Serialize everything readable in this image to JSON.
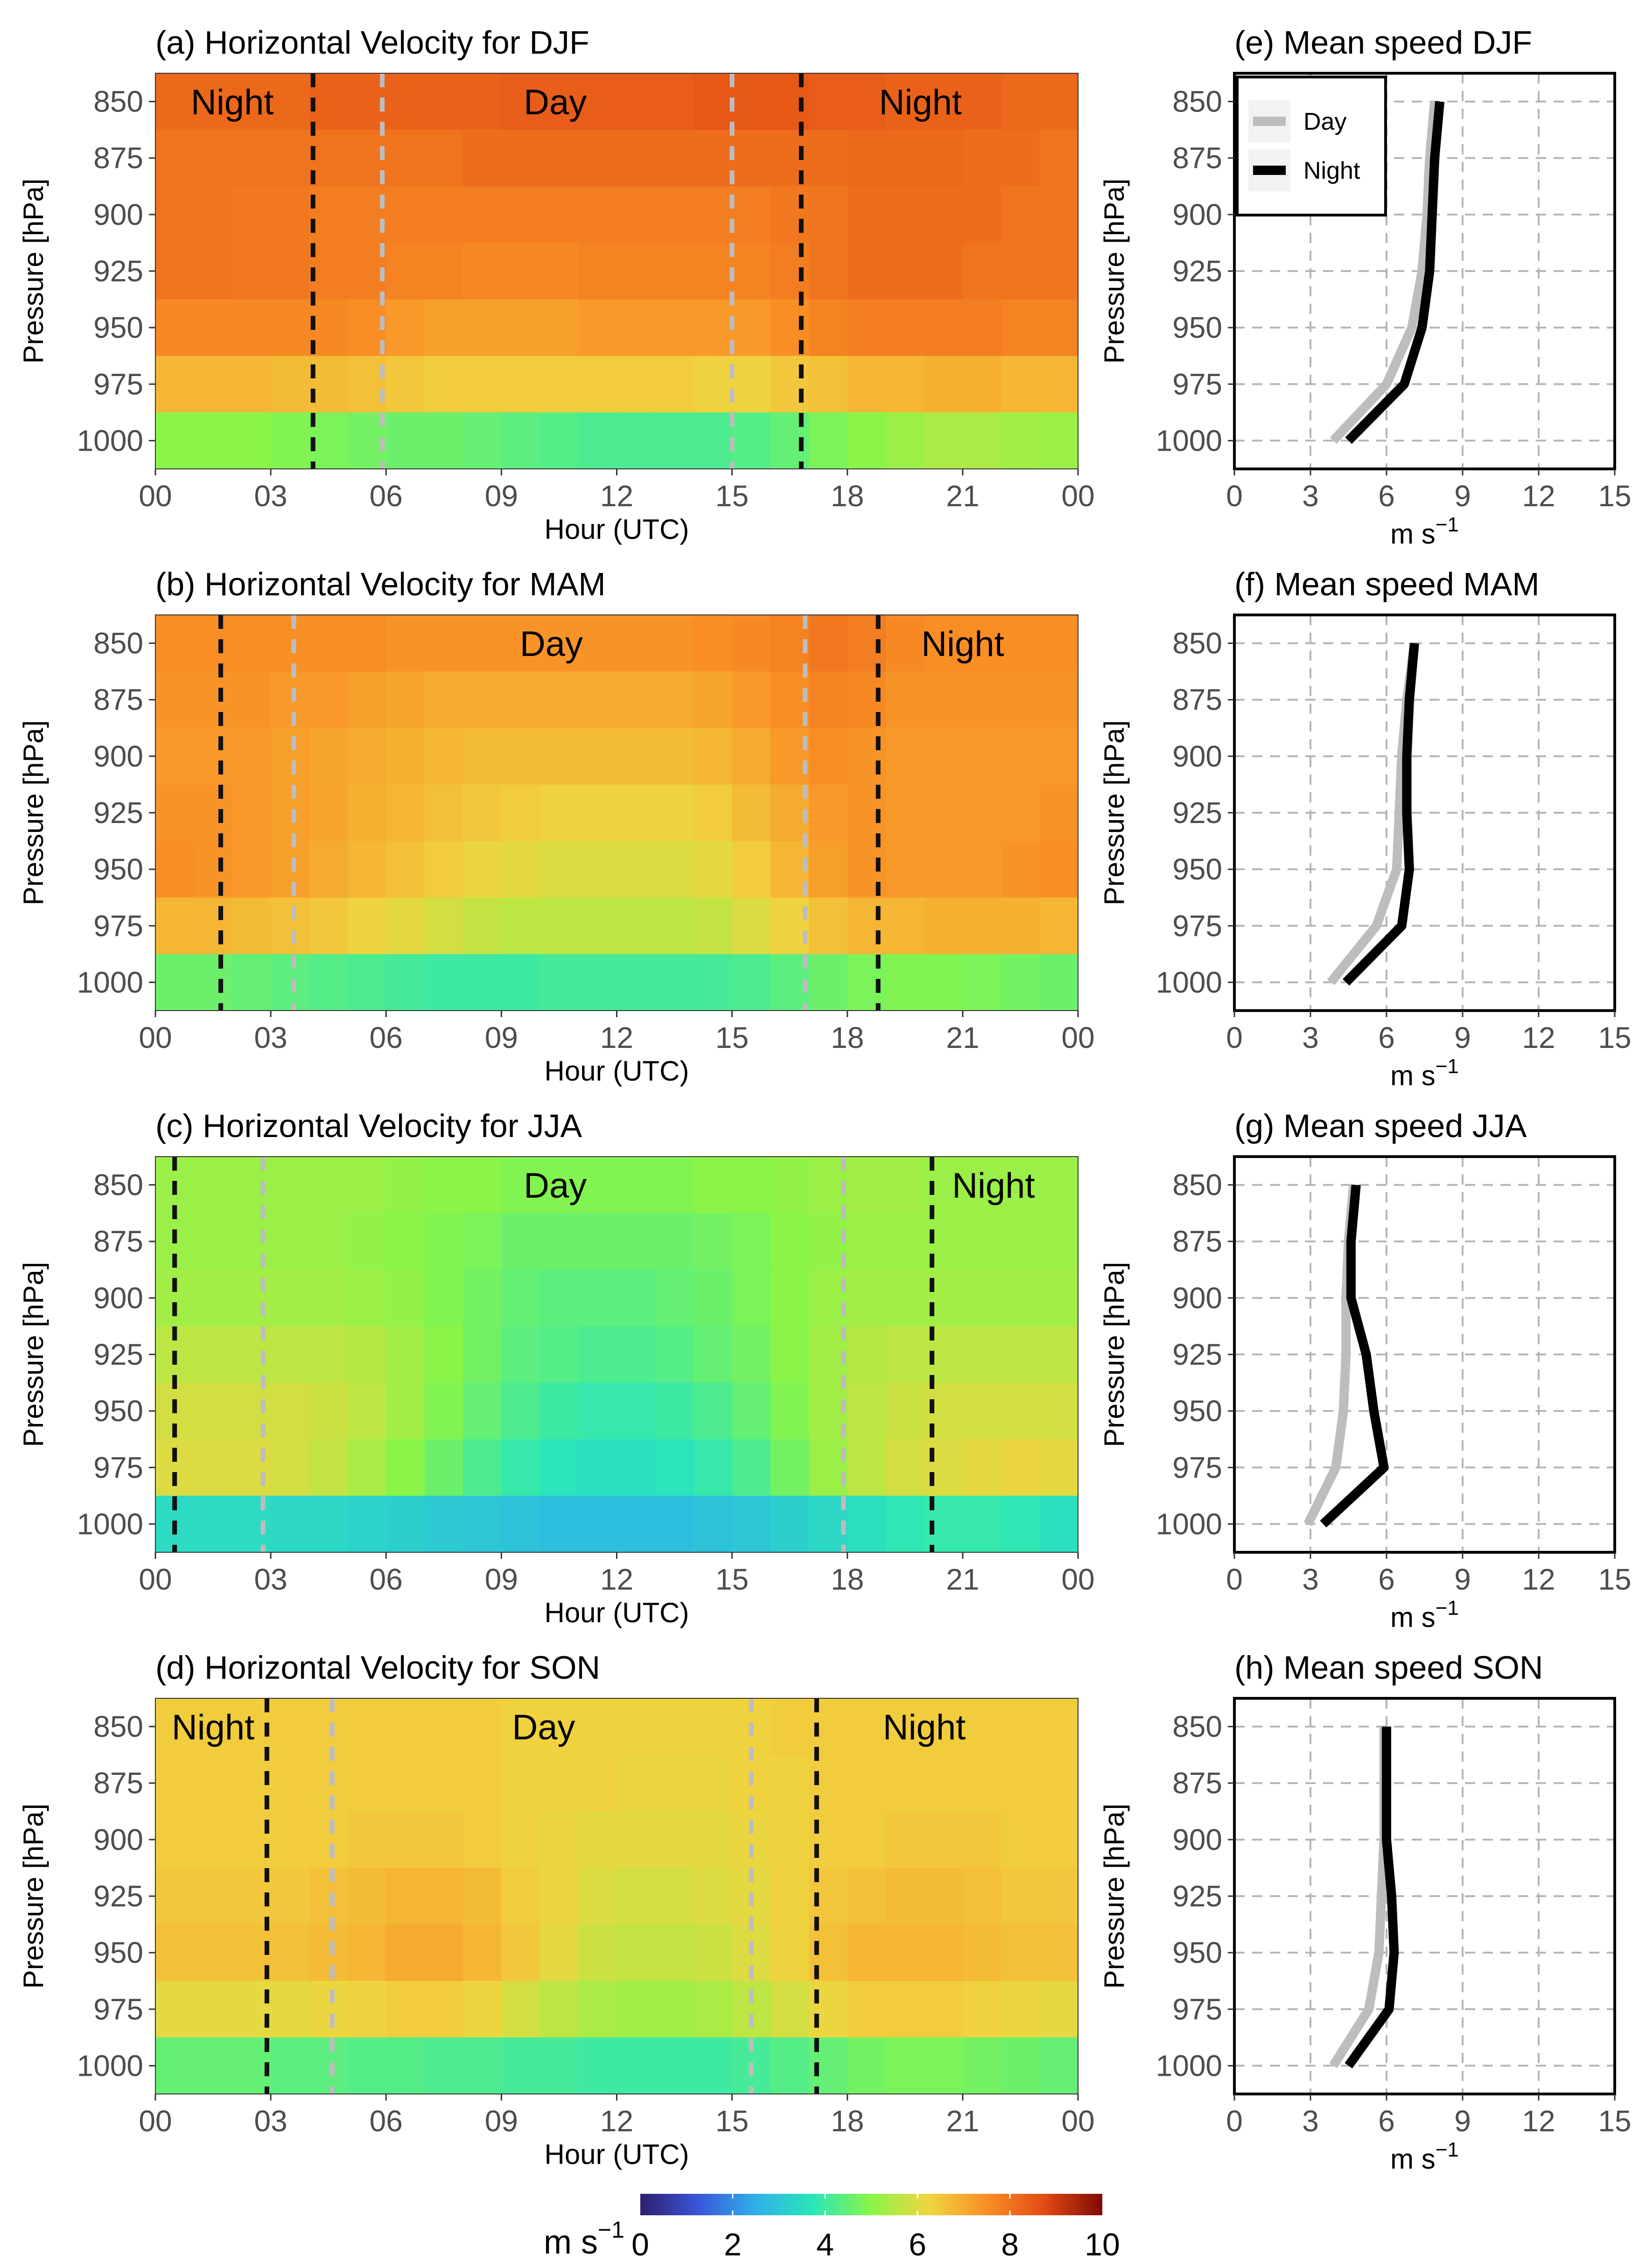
{
  "colorbar": {
    "label_prefix": "m s",
    "label_sup": "−1",
    "ticks": [
      "0",
      "2",
      "4",
      "6",
      "8",
      "10"
    ],
    "min": 0,
    "max": 10,
    "colors": [
      "#2d1e6e",
      "#3b55d8",
      "#2fb1e9",
      "#2be6b8",
      "#8af548",
      "#f0d540",
      "#f98e25",
      "#e24a14",
      "#7e0a04"
    ]
  },
  "chart_data": [
    {
      "type": "heatmap",
      "title": "(a) Horizontal Velocity for DJF",
      "xlabel": "Hour (UTC)",
      "ylabel": "Pressure [hPa]",
      "x_ticks": [
        "00",
        "03",
        "06",
        "09",
        "12",
        "15",
        "18",
        "21",
        "00"
      ],
      "y_levels": [
        "850",
        "875",
        "900",
        "925",
        "950",
        "975",
        "1000"
      ],
      "hours": 24,
      "units": "m s-1",
      "values": [
        [
          8.2,
          8.2,
          8.2,
          8.2,
          8.3,
          8.3,
          8.3,
          8.3,
          8.3,
          8.4,
          8.4,
          8.4,
          8.4,
          8.4,
          8.5,
          8.5,
          8.5,
          8.4,
          8.4,
          8.3,
          8.3,
          8.3,
          8.2,
          8.2
        ],
        [
          8.0,
          8.0,
          8.0,
          8.0,
          8.0,
          8.0,
          8.0,
          8.0,
          8.1,
          8.1,
          8.1,
          8.1,
          8.1,
          8.1,
          8.1,
          8.1,
          8.1,
          8.1,
          8.2,
          8.2,
          8.2,
          8.1,
          8.1,
          8.0
        ],
        [
          8.0,
          8.0,
          7.9,
          7.9,
          7.8,
          7.8,
          7.8,
          7.8,
          7.8,
          7.8,
          7.8,
          7.8,
          7.8,
          7.8,
          7.8,
          7.8,
          7.9,
          8.0,
          8.1,
          8.1,
          8.1,
          8.1,
          8.0,
          8.0
        ],
        [
          8.0,
          8.0,
          7.9,
          7.9,
          7.8,
          7.8,
          7.7,
          7.7,
          7.6,
          7.6,
          7.6,
          7.7,
          7.7,
          7.7,
          7.7,
          7.7,
          7.8,
          8.0,
          8.1,
          8.1,
          8.1,
          8.0,
          8.0,
          8.0
        ],
        [
          7.6,
          7.6,
          7.6,
          7.6,
          7.6,
          7.5,
          7.3,
          7.2,
          7.2,
          7.2,
          7.2,
          7.3,
          7.3,
          7.3,
          7.3,
          7.3,
          7.5,
          7.7,
          7.8,
          7.8,
          7.8,
          7.8,
          7.7,
          7.7
        ],
        [
          6.8,
          6.8,
          6.8,
          6.7,
          6.7,
          6.6,
          6.5,
          6.4,
          6.4,
          6.4,
          6.4,
          6.4,
          6.4,
          6.4,
          6.3,
          6.3,
          6.5,
          6.6,
          6.8,
          6.8,
          6.9,
          6.9,
          6.8,
          6.8
        ],
        [
          5.0,
          5.0,
          5.0,
          4.9,
          4.8,
          4.7,
          4.6,
          4.6,
          4.5,
          4.4,
          4.3,
          4.2,
          4.2,
          4.2,
          4.2,
          4.3,
          4.5,
          4.8,
          5.0,
          5.2,
          5.4,
          5.4,
          5.3,
          5.2
        ]
      ],
      "day_start": 5.9,
      "day_end": 15.0,
      "night_start": 16.8,
      "night_end": 4.1,
      "labels": [
        {
          "text": "Night",
          "x": 2.0
        },
        {
          "text": "Day",
          "x": 10.4
        },
        {
          "text": "Night",
          "x": 19.9
        }
      ]
    },
    {
      "type": "heatmap",
      "title": "(b) Horizontal Velocity for MAM",
      "xlabel": "Hour (UTC)",
      "ylabel": "Pressure [hPa]",
      "x_ticks": [
        "00",
        "03",
        "06",
        "09",
        "12",
        "15",
        "18",
        "21",
        "00"
      ],
      "y_levels": [
        "850",
        "875",
        "900",
        "925",
        "950",
        "975",
        "1000"
      ],
      "hours": 24,
      "units": "m s-1",
      "values": [
        [
          7.5,
          7.5,
          7.5,
          7.5,
          7.5,
          7.5,
          7.4,
          7.4,
          7.4,
          7.4,
          7.4,
          7.4,
          7.4,
          7.4,
          7.5,
          7.6,
          7.7,
          7.9,
          7.8,
          7.6,
          7.5,
          7.5,
          7.5,
          7.5
        ],
        [
          7.4,
          7.4,
          7.4,
          7.3,
          7.3,
          7.2,
          7.1,
          7.0,
          7.0,
          7.0,
          7.0,
          7.0,
          7.0,
          7.0,
          7.1,
          7.3,
          7.5,
          7.7,
          7.6,
          7.4,
          7.4,
          7.4,
          7.4,
          7.4
        ],
        [
          7.3,
          7.3,
          7.3,
          7.2,
          7.1,
          7.0,
          6.9,
          6.8,
          6.7,
          6.7,
          6.7,
          6.7,
          6.7,
          6.7,
          6.8,
          7.0,
          7.3,
          7.5,
          7.4,
          7.3,
          7.3,
          7.3,
          7.3,
          7.3
        ],
        [
          7.4,
          7.4,
          7.3,
          7.2,
          7.1,
          6.9,
          6.8,
          6.6,
          6.5,
          6.4,
          6.3,
          6.3,
          6.3,
          6.3,
          6.4,
          6.7,
          7.0,
          7.3,
          7.4,
          7.3,
          7.3,
          7.3,
          7.3,
          7.4
        ],
        [
          7.5,
          7.4,
          7.3,
          7.2,
          7.0,
          6.8,
          6.6,
          6.4,
          6.2,
          6.1,
          6.0,
          6.0,
          6.0,
          6.0,
          6.1,
          6.4,
          6.8,
          7.2,
          7.4,
          7.3,
          7.3,
          7.3,
          7.4,
          7.5
        ],
        [
          6.8,
          6.8,
          6.7,
          6.6,
          6.5,
          6.3,
          6.1,
          5.9,
          5.7,
          5.6,
          5.6,
          5.6,
          5.6,
          5.6,
          5.7,
          6.0,
          6.3,
          6.6,
          6.8,
          6.8,
          6.9,
          6.9,
          6.9,
          6.8
        ],
        [
          4.6,
          4.6,
          4.5,
          4.4,
          4.3,
          4.2,
          4.1,
          4.0,
          4.0,
          4.0,
          4.1,
          4.1,
          4.1,
          4.1,
          4.1,
          4.2,
          4.4,
          4.6,
          4.8,
          4.9,
          4.9,
          4.8,
          4.7,
          4.6
        ]
      ],
      "day_start": 3.6,
      "day_end": 16.9,
      "night_start": 18.8,
      "night_end": 1.7,
      "labels": [
        {
          "text": "Day",
          "x": 10.3
        },
        {
          "text": "Night",
          "x": 21.0
        }
      ]
    },
    {
      "type": "heatmap",
      "title": "(c) Horizontal Velocity for JJA",
      "xlabel": "Hour (UTC)",
      "ylabel": "Pressure [hPa]",
      "x_ticks": [
        "00",
        "03",
        "06",
        "09",
        "12",
        "15",
        "18",
        "21",
        "00"
      ],
      "y_levels": [
        "850",
        "875",
        "900",
        "925",
        "950",
        "975",
        "1000"
      ],
      "hours": 24,
      "units": "m s-1",
      "values": [
        [
          5.2,
          5.2,
          5.2,
          5.2,
          5.2,
          5.2,
          5.1,
          5.0,
          5.0,
          4.9,
          4.9,
          4.9,
          4.9,
          4.9,
          5.0,
          5.0,
          5.1,
          5.2,
          5.3,
          5.3,
          5.2,
          5.2,
          5.2,
          5.2
        ],
        [
          5.2,
          5.2,
          5.2,
          5.2,
          5.2,
          5.1,
          5.0,
          4.9,
          4.8,
          4.6,
          4.6,
          4.6,
          4.6,
          4.6,
          4.7,
          4.8,
          5.0,
          5.1,
          5.2,
          5.2,
          5.2,
          5.2,
          5.2,
          5.2
        ],
        [
          5.3,
          5.3,
          5.3,
          5.3,
          5.3,
          5.2,
          5.1,
          4.9,
          4.7,
          4.5,
          4.4,
          4.4,
          4.4,
          4.5,
          4.6,
          4.8,
          5.0,
          5.2,
          5.3,
          5.3,
          5.3,
          5.3,
          5.3,
          5.3
        ],
        [
          5.6,
          5.6,
          5.6,
          5.6,
          5.6,
          5.5,
          5.3,
          5.0,
          4.7,
          4.4,
          4.3,
          4.2,
          4.2,
          4.3,
          4.5,
          4.7,
          5.0,
          5.3,
          5.5,
          5.6,
          5.6,
          5.6,
          5.6,
          5.6
        ],
        [
          5.9,
          5.9,
          5.9,
          5.9,
          5.8,
          5.6,
          5.3,
          4.9,
          4.5,
          4.2,
          4.0,
          3.9,
          3.9,
          4.0,
          4.2,
          4.5,
          4.9,
          5.3,
          5.6,
          5.8,
          5.9,
          5.9,
          5.9,
          5.9
        ],
        [
          6.0,
          6.0,
          6.0,
          5.9,
          5.7,
          5.4,
          5.0,
          4.6,
          4.2,
          3.9,
          3.7,
          3.6,
          3.6,
          3.7,
          3.9,
          4.2,
          4.7,
          5.2,
          5.6,
          5.9,
          6.0,
          6.1,
          6.2,
          6.1
        ],
        [
          3.5,
          3.5,
          3.5,
          3.4,
          3.4,
          3.3,
          3.2,
          3.1,
          3.0,
          2.9,
          2.8,
          2.8,
          2.8,
          2.8,
          2.9,
          3.0,
          3.2,
          3.4,
          3.6,
          3.8,
          3.9,
          3.9,
          3.8,
          3.6
        ]
      ],
      "day_start": 2.8,
      "day_end": 17.9,
      "night_start": 20.2,
      "night_end": 0.5,
      "labels": [
        {
          "text": "Day",
          "x": 10.4
        },
        {
          "text": "Night",
          "x": 21.8
        }
      ]
    },
    {
      "type": "heatmap",
      "title": "(d) Horizontal Velocity for SON",
      "xlabel": "Hour (UTC)",
      "ylabel": "Pressure [hPa]",
      "x_ticks": [
        "00",
        "03",
        "06",
        "09",
        "12",
        "15",
        "18",
        "21",
        "00"
      ],
      "y_levels": [
        "850",
        "875",
        "900",
        "925",
        "950",
        "975",
        "1000"
      ],
      "hours": 24,
      "units": "m s-1",
      "values": [
        [
          6.4,
          6.4,
          6.4,
          6.4,
          6.4,
          6.4,
          6.4,
          6.4,
          6.4,
          6.3,
          6.3,
          6.3,
          6.3,
          6.3,
          6.3,
          6.3,
          6.4,
          6.4,
          6.4,
          6.4,
          6.4,
          6.4,
          6.4,
          6.4
        ],
        [
          6.4,
          6.4,
          6.4,
          6.4,
          6.4,
          6.4,
          6.4,
          6.4,
          6.4,
          6.3,
          6.3,
          6.3,
          6.2,
          6.2,
          6.2,
          6.3,
          6.3,
          6.4,
          6.4,
          6.4,
          6.4,
          6.4,
          6.4,
          6.4
        ],
        [
          6.4,
          6.4,
          6.4,
          6.4,
          6.4,
          6.5,
          6.5,
          6.5,
          6.4,
          6.3,
          6.2,
          6.1,
          6.1,
          6.1,
          6.1,
          6.2,
          6.3,
          6.4,
          6.4,
          6.5,
          6.5,
          6.5,
          6.4,
          6.4
        ],
        [
          6.5,
          6.5,
          6.5,
          6.5,
          6.6,
          6.7,
          6.8,
          6.8,
          6.7,
          6.4,
          6.2,
          6.0,
          5.9,
          5.9,
          6.0,
          6.1,
          6.3,
          6.5,
          6.6,
          6.7,
          6.7,
          6.6,
          6.5,
          6.5
        ],
        [
          6.6,
          6.6,
          6.6,
          6.6,
          6.7,
          6.8,
          7.0,
          7.0,
          6.8,
          6.5,
          6.1,
          5.8,
          5.7,
          5.7,
          5.8,
          6.0,
          6.3,
          6.6,
          6.8,
          6.8,
          6.8,
          6.7,
          6.6,
          6.6
        ],
        [
          6.1,
          6.1,
          6.1,
          6.1,
          6.2,
          6.3,
          6.4,
          6.4,
          6.2,
          5.9,
          5.6,
          5.4,
          5.3,
          5.3,
          5.4,
          5.6,
          5.9,
          6.2,
          6.4,
          6.4,
          6.4,
          6.3,
          6.2,
          6.1
        ],
        [
          4.5,
          4.5,
          4.5,
          4.4,
          4.4,
          4.3,
          4.3,
          4.2,
          4.2,
          4.1,
          4.1,
          4.0,
          4.0,
          4.0,
          4.0,
          4.1,
          4.3,
          4.5,
          4.7,
          4.8,
          4.8,
          4.7,
          4.6,
          4.5
        ]
      ],
      "day_start": 4.6,
      "day_end": 15.5,
      "night_start": 17.2,
      "night_end": 2.9,
      "labels": [
        {
          "text": "Night",
          "x": 1.5
        },
        {
          "text": "Day",
          "x": 10.1
        },
        {
          "text": "Night",
          "x": 20.0
        }
      ]
    },
    {
      "type": "line",
      "title": "(e) Mean speed DJF",
      "xlabel": "m s",
      "xlabel_sup": "−1",
      "ylabel": "Pressure [hPa]",
      "x_ticks": [
        "0",
        "3",
        "6",
        "9",
        "12",
        "15"
      ],
      "xlim": [
        0,
        15
      ],
      "y_levels": [
        "850",
        "875",
        "900",
        "925",
        "950",
        "975",
        "1000"
      ],
      "legend": {
        "items": [
          "Day",
          "Night"
        ],
        "position": "top-left"
      },
      "series": [
        {
          "name": "Day",
          "color": "#bdbdbd",
          "values": [
            7.9,
            7.7,
            7.6,
            7.4,
            7.0,
            6.0,
            3.9
          ]
        },
        {
          "name": "Night",
          "color": "#000000",
          "values": [
            8.1,
            7.9,
            7.8,
            7.7,
            7.4,
            6.7,
            4.5
          ]
        }
      ]
    },
    {
      "type": "line",
      "title": "(f) Mean speed MAM",
      "xlabel": "m s",
      "xlabel_sup": "−1",
      "ylabel": "Pressure [hPa]",
      "x_ticks": [
        "0",
        "3",
        "6",
        "9",
        "12",
        "15"
      ],
      "xlim": [
        0,
        15
      ],
      "y_levels": [
        "850",
        "875",
        "900",
        "925",
        "950",
        "975",
        "1000"
      ],
      "series": [
        {
          "name": "Day",
          "color": "#bdbdbd",
          "values": [
            7.1,
            6.8,
            6.6,
            6.5,
            6.4,
            5.6,
            3.8
          ]
        },
        {
          "name": "Night",
          "color": "#000000",
          "values": [
            7.1,
            6.9,
            6.8,
            6.8,
            6.9,
            6.6,
            4.4
          ]
        }
      ]
    },
    {
      "type": "line",
      "title": "(g) Mean speed JJA",
      "xlabel": "m s",
      "xlabel_sup": "−1",
      "ylabel": "Pressure [hPa]",
      "x_ticks": [
        "0",
        "3",
        "6",
        "9",
        "12",
        "15"
      ],
      "xlim": [
        0,
        15
      ],
      "y_levels": [
        "850",
        "875",
        "900",
        "925",
        "950",
        "975",
        "1000"
      ],
      "series": [
        {
          "name": "Day",
          "color": "#bdbdbd",
          "values": [
            4.7,
            4.5,
            4.4,
            4.4,
            4.3,
            4.0,
            2.9
          ]
        },
        {
          "name": "Night",
          "color": "#000000",
          "values": [
            4.8,
            4.6,
            4.6,
            5.2,
            5.5,
            5.9,
            3.5
          ]
        }
      ]
    },
    {
      "type": "line",
      "title": "(h) Mean speed SON",
      "xlabel": "m s",
      "xlabel_sup": "−1",
      "ylabel": "Pressure [hPa]",
      "x_ticks": [
        "0",
        "3",
        "6",
        "9",
        "12",
        "15"
      ],
      "xlim": [
        0,
        15
      ],
      "y_levels": [
        "850",
        "875",
        "900",
        "925",
        "950",
        "975",
        "1000"
      ],
      "series": [
        {
          "name": "Day",
          "color": "#bdbdbd",
          "values": [
            5.9,
            5.9,
            5.9,
            5.8,
            5.7,
            5.3,
            3.9
          ]
        },
        {
          "name": "Night",
          "color": "#000000",
          "values": [
            6.0,
            6.0,
            6.0,
            6.2,
            6.3,
            6.1,
            4.5
          ]
        }
      ]
    }
  ]
}
